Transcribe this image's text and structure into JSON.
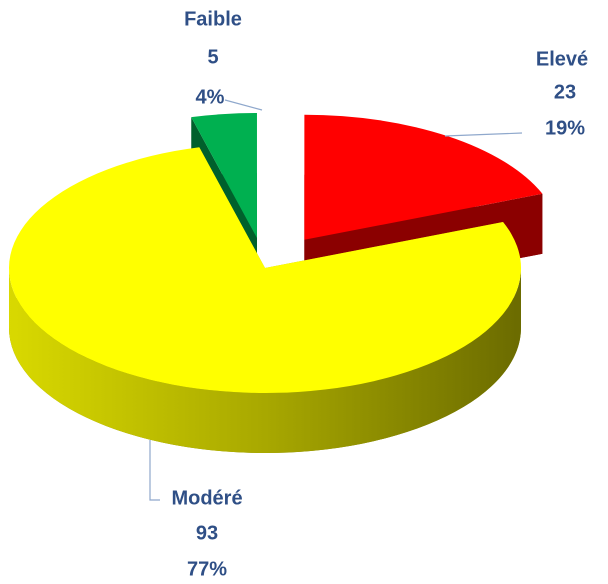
{
  "chart_data": {
    "type": "pie",
    "categories": [
      "Elevé",
      "Modéré",
      "Faible"
    ],
    "values": [
      23,
      93,
      5
    ],
    "percent_labels": [
      "19%",
      "77%",
      "4%"
    ],
    "colors": [
      "#ff0000",
      "#ffff00",
      "#00b050"
    ]
  }
}
